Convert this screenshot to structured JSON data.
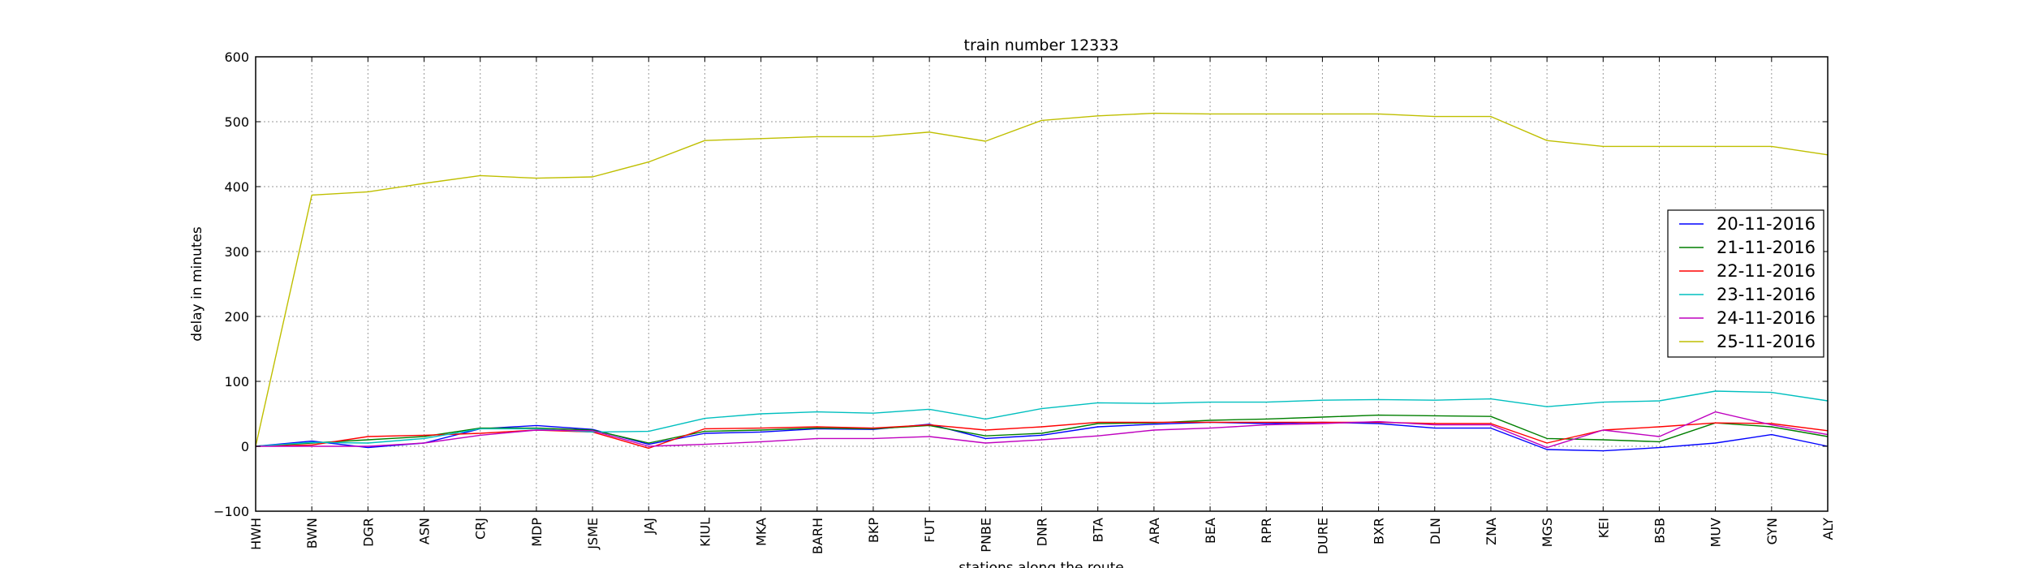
{
  "chart_data": {
    "type": "line",
    "title": "train number 12333",
    "xlabel": "stations along the route",
    "ylabel": "delay in minutes",
    "ylim": [
      -100,
      600
    ],
    "yticks": [
      -100,
      0,
      100,
      200,
      300,
      400,
      500,
      600
    ],
    "ytick_labels": [
      "−100",
      "0",
      "100",
      "200",
      "300",
      "400",
      "500",
      "600"
    ],
    "grid": true,
    "legend_position": "center-right",
    "categories": [
      "HWH",
      "BWN",
      "DGR",
      "ASN",
      "CRJ",
      "MDP",
      "JSME",
      "JAJ",
      "KIUL",
      "MKA",
      "BARH",
      "BKP",
      "FUT",
      "PNBE",
      "DNR",
      "BTA",
      "ARA",
      "BEA",
      "RPR",
      "DURE",
      "BXR",
      "DLN",
      "ZNA",
      "MGS",
      "KEI",
      "BSB",
      "MUV",
      "GYN",
      "ALY"
    ],
    "series": [
      {
        "name": "20-11-2016",
        "color": "#0000ff",
        "values": [
          0,
          8,
          -2,
          5,
          27,
          32,
          26,
          3,
          20,
          22,
          27,
          26,
          34,
          12,
          17,
          30,
          34,
          37,
          35,
          37,
          35,
          28,
          28,
          -5,
          -7,
          -2,
          5,
          18,
          0
        ]
      },
      {
        "name": "21-11-2016",
        "color": "#007f00",
        "values": [
          0,
          5,
          10,
          15,
          28,
          28,
          25,
          5,
          23,
          25,
          28,
          27,
          32,
          16,
          20,
          35,
          36,
          40,
          42,
          45,
          48,
          47,
          46,
          12,
          10,
          7,
          36,
          30,
          15
        ]
      },
      {
        "name": "22-11-2016",
        "color": "#ff0000",
        "values": [
          0,
          2,
          15,
          17,
          20,
          25,
          22,
          -3,
          27,
          28,
          30,
          28,
          33,
          25,
          30,
          37,
          37,
          37,
          37,
          37,
          37,
          35,
          35,
          5,
          25,
          30,
          36,
          35,
          24
        ]
      },
      {
        "name": "23-11-2016",
        "color": "#00bfbf",
        "values": [
          0,
          6,
          5,
          12,
          27,
          27,
          22,
          23,
          43,
          50,
          53,
          51,
          57,
          42,
          58,
          67,
          66,
          68,
          68,
          71,
          72,
          71,
          73,
          61,
          68,
          70,
          85,
          83,
          70
        ]
      },
      {
        "name": "24-11-2016",
        "color": "#bf00bf",
        "values": [
          0,
          0,
          0,
          5,
          17,
          25,
          24,
          0,
          3,
          7,
          12,
          12,
          15,
          5,
          10,
          16,
          25,
          28,
          33,
          35,
          38,
          33,
          33,
          -2,
          25,
          15,
          53,
          33,
          18
        ]
      },
      {
        "name": "25-11-2016",
        "color": "#bfbf00",
        "values": [
          0,
          387,
          392,
          405,
          417,
          413,
          415,
          438,
          471,
          474,
          477,
          477,
          484,
          470,
          502,
          509,
          513,
          512,
          512,
          512,
          512,
          508,
          508,
          471,
          462,
          462,
          462,
          462,
          449
        ]
      }
    ]
  }
}
